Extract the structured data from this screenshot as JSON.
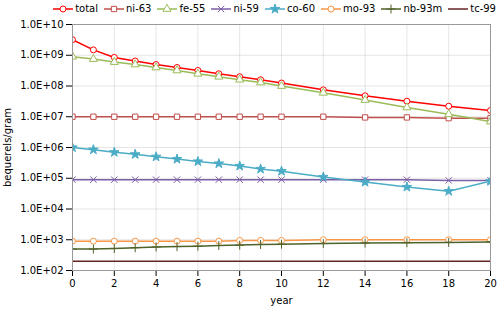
{
  "chart_data": {
    "type": "line",
    "xlabel": "year",
    "ylabel": "bequerels/gram",
    "x": [
      0,
      1,
      2,
      3,
      4,
      5,
      6,
      7,
      8,
      9,
      10,
      12,
      14,
      16,
      18,
      20
    ],
    "series": [
      {
        "name": "total",
        "color": "#FF0000",
        "marker": "circle",
        "values": [
          3200000000.0,
          1500000000.0,
          850000000.0,
          650000000.0,
          500000000.0,
          400000000.0,
          320000000.0,
          250000000.0,
          200000000.0,
          160000000.0,
          125000000.0,
          75000000.0,
          48000000.0,
          32000000.0,
          22000000.0,
          16000000.0
        ]
      },
      {
        "name": "ni-63",
        "color": "#C0504D",
        "marker": "square",
        "values": [
          10000000.0,
          10000000.0,
          10000000.0,
          10000000.0,
          10000000.0,
          10000000.0,
          10000000.0,
          10000000.0,
          10000000.0,
          10000000.0,
          10000000.0,
          10000000.0,
          9500000.0,
          9500000.0,
          9000000.0,
          9000000.0
        ]
      },
      {
        "name": "fe-55",
        "color": "#9BBB59",
        "marker": "triangle",
        "values": [
          900000000.0,
          750000000.0,
          600000000.0,
          500000000.0,
          400000000.0,
          320000000.0,
          250000000.0,
          200000000.0,
          160000000.0,
          130000000.0,
          100000000.0,
          60000000.0,
          35000000.0,
          20000000.0,
          12000000.0,
          7000000.0
        ]
      },
      {
        "name": "ni-59",
        "color": "#7B5EA7",
        "marker": "times",
        "values": [
          90000.0,
          90000.0,
          90000.0,
          90000.0,
          90000.0,
          90000.0,
          90000.0,
          90000.0,
          90000.0,
          90000.0,
          90000.0,
          90000.0,
          90000.0,
          90000.0,
          85000.0,
          85000.0
        ]
      },
      {
        "name": "co-60",
        "color": "#4BACC6",
        "marker": "star",
        "values": [
          1000000.0,
          850000.0,
          700000.0,
          600000.0,
          500000.0,
          420000.0,
          350000.0,
          300000.0,
          250000.0,
          200000.0,
          170000.0,
          110000.0,
          75000.0,
          52000.0,
          38000.0,
          80000.0
        ]
      },
      {
        "name": "mo-93",
        "color": "#F79646",
        "marker": "circle",
        "values": [
          900.0,
          900.0,
          900.0,
          900.0,
          900.0,
          900.0,
          900.0,
          900.0,
          950.0,
          950.0,
          950.0,
          1000.0,
          1000.0,
          1000.0,
          1000.0,
          1000.0
        ]
      },
      {
        "name": "nb-93m",
        "color": "#4F6228",
        "marker": "plus",
        "values": [
          500.0,
          500.0,
          520.0,
          550.0,
          580.0,
          600.0,
          620.0,
          650.0,
          670.0,
          700.0,
          720.0,
          750.0,
          780.0,
          800.0,
          820.0,
          850.0
        ]
      },
      {
        "name": "tc-99",
        "color": "#632523",
        "values": [
          200.0,
          200.0,
          200.0,
          200.0,
          200.0,
          200.0,
          200.0,
          200.0,
          200.0,
          200.0,
          200.0,
          200.0,
          200.0,
          200.0,
          200.0,
          200.0
        ]
      }
    ],
    "log": "y",
    "xlim": [
      0,
      20
    ],
    "xticks": [
      0,
      2,
      4,
      6,
      8,
      10,
      12,
      14,
      16,
      18,
      20
    ],
    "ylim": [
      100.0,
      10000000000.0
    ],
    "yticks": [
      {
        "value": 100.0,
        "label": "1.0E+02"
      },
      {
        "value": 1000.0,
        "label": "1.0E+03"
      },
      {
        "value": 10000.0,
        "label": "1.0E+04"
      },
      {
        "value": 100000.0,
        "label": "1.0E+05"
      },
      {
        "value": 1000000.0,
        "label": "1.0E+06"
      },
      {
        "value": 10000000.0,
        "label": "1.0E+07"
      },
      {
        "value": 100000000.0,
        "label": "1.0E+08"
      },
      {
        "value": 1000000000.0,
        "label": "1.0E+09"
      },
      {
        "value": 10000000000.0,
        "label": "1.0E+10"
      }
    ],
    "grid": true,
    "legend": "upper right"
  }
}
